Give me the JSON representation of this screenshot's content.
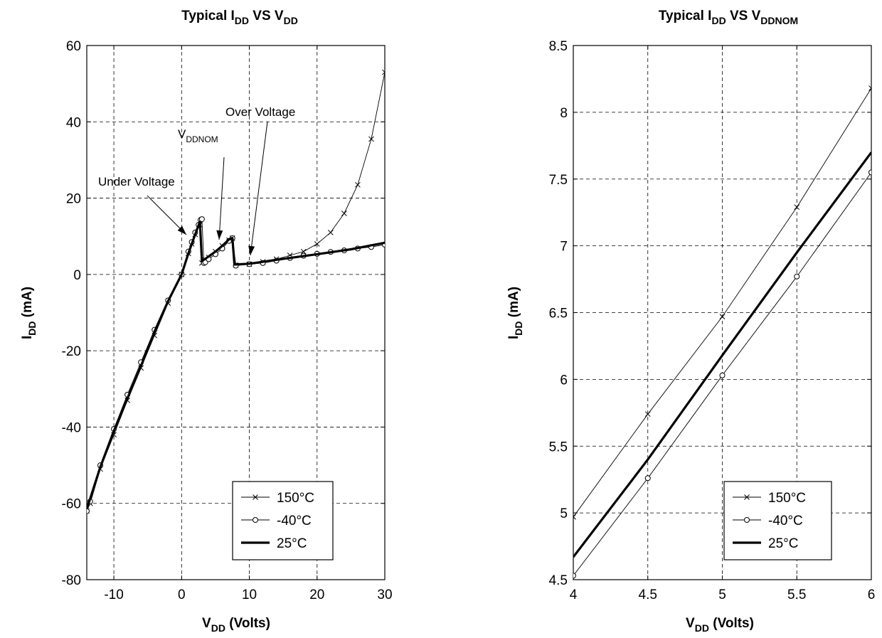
{
  "chart_data": [
    {
      "type": "line",
      "title": {
        "main": "Typical I",
        "sub": "DD",
        "tail": " VS V",
        "tail_sub": "DD"
      },
      "xlabel": {
        "main": "V",
        "sub": "DD",
        "tail": " (Volts)"
      },
      "ylabel": {
        "main": "I",
        "sub": "DD",
        "tail": " (mA)"
      },
      "xlim": [
        -14,
        30
      ],
      "ylim": [
        -80,
        60
      ],
      "xticks": [
        -10,
        0,
        10,
        20,
        30
      ],
      "yticks": [
        -80,
        -60,
        -40,
        -20,
        0,
        20,
        40,
        60
      ],
      "grid": true,
      "legend_position": "bottom-right",
      "annotations": [
        {
          "main": "Under Voltage",
          "sub": ""
        },
        {
          "main": "V",
          "sub": "DDNOM"
        },
        {
          "main": "Over Voltage",
          "sub": ""
        }
      ],
      "series": [
        {
          "name": "150°C",
          "marker": "x",
          "x": [
            -14,
            -13.5,
            -12,
            -10,
            -8,
            -6,
            -4,
            -2,
            0,
            1,
            1.5,
            2,
            2.5,
            2.7,
            3,
            3.5,
            4,
            5,
            6,
            7,
            7.5,
            8,
            10,
            12,
            14,
            16,
            18,
            20,
            22,
            24,
            26,
            28,
            30
          ],
          "y": [
            -62,
            -60,
            -51,
            -42,
            -33,
            -24.5,
            -16,
            -7.5,
            0,
            5.5,
            8,
            10.5,
            12.5,
            13,
            3,
            3.8,
            4.5,
            6,
            7.5,
            9,
            9.5,
            2.5,
            2.7,
            3.3,
            4,
            5,
            6,
            8,
            11,
            16,
            23.5,
            35.5,
            53
          ]
        },
        {
          "name": "-40°C",
          "marker": "o",
          "x": [
            -14,
            -13.5,
            -12,
            -10,
            -8,
            -6,
            -4,
            -2,
            0,
            1,
            1.5,
            2,
            2.5,
            2.8,
            3,
            3.3,
            3.5,
            4,
            5,
            6,
            7,
            7.5,
            8,
            10,
            12,
            14,
            16,
            18,
            20,
            22,
            24,
            26,
            28,
            30
          ],
          "y": [
            -62,
            -59.5,
            -50,
            -40.5,
            -31.5,
            -23,
            -14.5,
            -6.8,
            0,
            6,
            8.5,
            11,
            13,
            14.3,
            14.5,
            3,
            3.2,
            4,
            5.3,
            6.8,
            8.8,
            9.5,
            2.3,
            2.7,
            3,
            3.6,
            4.3,
            4.9,
            5.4,
            5.9,
            6.3,
            6.8,
            7.2,
            7.8
          ]
        },
        {
          "name": "25°C",
          "marker": "none",
          "x": [
            -14,
            -12,
            -10,
            -8,
            -6,
            -4,
            -2,
            0,
            1,
            2,
            2.7,
            3,
            4,
            5,
            6,
            7,
            7.5,
            7.8,
            10,
            15,
            20,
            25,
            30
          ],
          "y": [
            -61.5,
            -50.5,
            -41,
            -32.5,
            -24,
            -15,
            -7,
            0,
            5.5,
            10.5,
            13.8,
            3.5,
            4.7,
            6,
            7.5,
            9.2,
            9.6,
            2.6,
            2.8,
            4.1,
            5.3,
            6.6,
            8.3
          ]
        }
      ]
    },
    {
      "type": "line",
      "title": {
        "main": "Typical I",
        "sub": "DD",
        "tail": " VS V",
        "tail_sub": "DDNOM"
      },
      "xlabel": {
        "main": "V",
        "sub": "DD",
        "tail": " (Volts)"
      },
      "ylabel": {
        "main": "I",
        "sub": "DD",
        "tail": " (mA)"
      },
      "xlim": [
        4,
        6
      ],
      "ylim": [
        4.5,
        8.5
      ],
      "xticks": [
        4,
        4.5,
        5,
        5.5,
        6
      ],
      "yticks": [
        4.5,
        5,
        5.5,
        6,
        6.5,
        7,
        7.5,
        8,
        8.5
      ],
      "grid": true,
      "legend_position": "bottom-right",
      "series": [
        {
          "name": "150°C",
          "marker": "x",
          "x": [
            4,
            4.5,
            5,
            5.5,
            6
          ],
          "y": [
            4.97,
            5.74,
            6.47,
            7.29,
            8.18
          ]
        },
        {
          "name": "-40°C",
          "marker": "o",
          "x": [
            4,
            4.5,
            5,
            5.5,
            6
          ],
          "y": [
            4.53,
            5.26,
            6.03,
            6.77,
            7.55
          ]
        },
        {
          "name": "25°C",
          "marker": "none",
          "x": [
            4,
            4.5,
            5,
            5.5,
            6
          ],
          "y": [
            4.67,
            5.4,
            6.18,
            6.95,
            7.7
          ]
        }
      ],
      "annotations": []
    }
  ]
}
